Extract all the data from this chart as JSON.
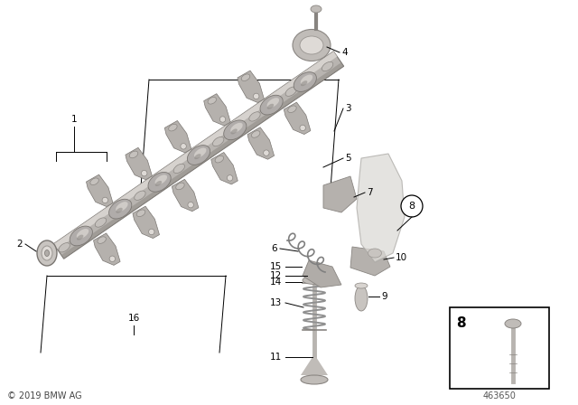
{
  "bg_color": "#ffffff",
  "copyright_text": "© 2019 BMW AG",
  "part_number": "463650",
  "shaft_color": "#b8b4b0",
  "shaft_dark": "#8a8680",
  "shaft_light": "#d8d4d0",
  "cam_color": "#c0bcb8",
  "follower_color": "#b0acaa",
  "follower_dark": "#8a8682",
  "spring_color": "#909090",
  "guide_color": "#cac8c4",
  "text_color": "#000000",
  "label_fontsize": 7.5
}
